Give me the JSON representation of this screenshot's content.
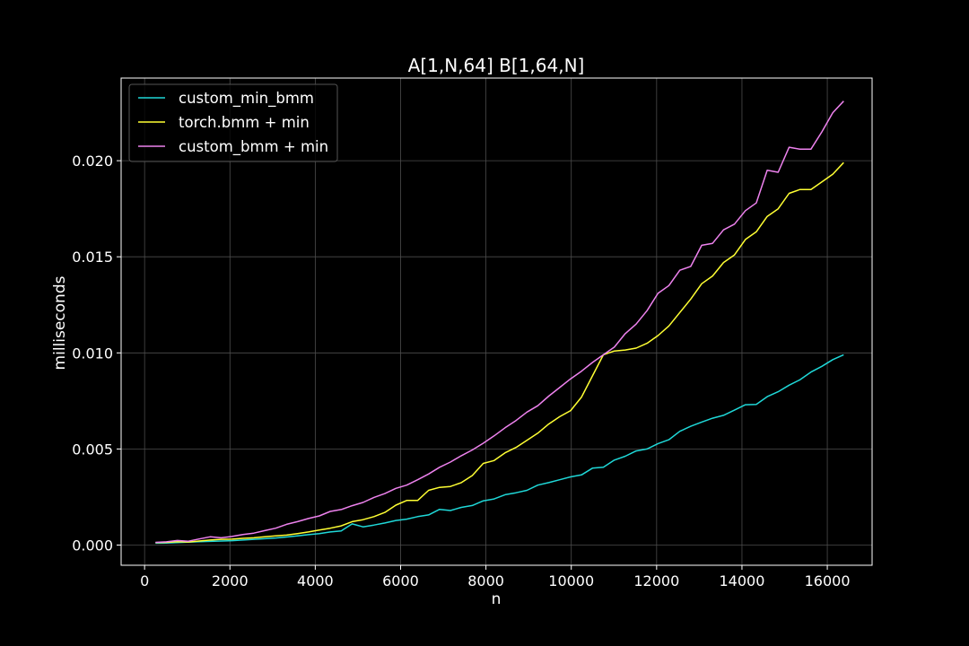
{
  "chart_data": {
    "type": "line",
    "title": "A[1,N,64] B[1,64,N]",
    "xlabel": "n",
    "ylabel": "milliseconds",
    "xlim": [
      -550,
      17050
    ],
    "ylim": [
      -0.00105,
      0.0243
    ],
    "xticks": [
      0,
      2000,
      4000,
      6000,
      8000,
      10000,
      12000,
      14000,
      16000
    ],
    "xtick_labels": [
      "0",
      "2000",
      "4000",
      "6000",
      "8000",
      "10000",
      "12000",
      "14000",
      "16000"
    ],
    "yticks": [
      0.0,
      0.005,
      0.01,
      0.015,
      0.02
    ],
    "ytick_labels": [
      "0.000",
      "0.005",
      "0.010",
      "0.015",
      "0.020"
    ],
    "grid": true,
    "legend_position": "top-left",
    "background": "#000000",
    "foreground": "#ffffff",
    "x": [
      256,
      512,
      768,
      1024,
      1280,
      1536,
      1792,
      2048,
      2304,
      2560,
      2816,
      3072,
      3328,
      3584,
      3840,
      4096,
      4352,
      4608,
      4864,
      5120,
      5376,
      5632,
      5888,
      6144,
      6400,
      6656,
      6912,
      7168,
      7424,
      7680,
      7936,
      8192,
      8448,
      8704,
      8960,
      9216,
      9472,
      9728,
      9984,
      10240,
      10496,
      10752,
      11008,
      11264,
      11520,
      11776,
      12032,
      12288,
      12544,
      12800,
      13056,
      13312,
      13568,
      13824,
      14080,
      14336,
      14592,
      14848,
      15104,
      15360,
      15616,
      15872,
      16128,
      16384
    ],
    "series": [
      {
        "name": "custom_min_bmm",
        "color": "#1fd8d8",
        "values": [
          0.0001,
          0.00011,
          0.00013,
          0.00015,
          0.00018,
          0.00019,
          0.00021,
          0.00023,
          0.00026,
          0.0003,
          0.00033,
          0.00037,
          0.00042,
          0.00048,
          0.00054,
          0.0006,
          0.00068,
          0.00074,
          0.0011,
          0.00095,
          0.00104,
          0.00115,
          0.00128,
          0.00135,
          0.00148,
          0.00157,
          0.00186,
          0.0018,
          0.00196,
          0.00206,
          0.0023,
          0.0024,
          0.00262,
          0.00272,
          0.00285,
          0.00312,
          0.00325,
          0.0034,
          0.00355,
          0.00365,
          0.004,
          0.00405,
          0.00442,
          0.00462,
          0.0049,
          0.005,
          0.00528,
          0.00548,
          0.00592,
          0.00618,
          0.0064,
          0.0066,
          0.00675,
          0.00702,
          0.0073,
          0.00732,
          0.00772,
          0.00798,
          0.00832,
          0.0086,
          0.009,
          0.0093,
          0.00965,
          0.0099
        ]
      },
      {
        "name": "torch.bmm + min",
        "color": "#ffff33",
        "values": [
          0.00013,
          0.00014,
          0.00018,
          0.00016,
          0.00021,
          0.00026,
          0.0003,
          0.00031,
          0.00035,
          0.00038,
          0.00043,
          0.00048,
          0.00052,
          0.0006,
          0.00068,
          0.00078,
          0.00088,
          0.001,
          0.00122,
          0.00132,
          0.00148,
          0.0017,
          0.00208,
          0.00232,
          0.00232,
          0.00285,
          0.003,
          0.00305,
          0.00325,
          0.00362,
          0.00425,
          0.0044,
          0.0048,
          0.00508,
          0.00545,
          0.00582,
          0.0063,
          0.00668,
          0.007,
          0.0077,
          0.0088,
          0.0099,
          0.0101,
          0.01015,
          0.01025,
          0.0105,
          0.0109,
          0.0114,
          0.0121,
          0.0128,
          0.0136,
          0.014,
          0.0147,
          0.0151,
          0.0159,
          0.0163,
          0.0171,
          0.0175,
          0.0183,
          0.0185,
          0.0185,
          0.0189,
          0.0193,
          0.0199
        ]
      },
      {
        "name": "custom_bmm + min",
        "color": "#ee82ee",
        "values": [
          0.00014,
          0.00017,
          0.00024,
          0.0002,
          0.00032,
          0.00043,
          0.00038,
          0.00045,
          0.00055,
          0.00062,
          0.00075,
          0.00088,
          0.00108,
          0.00122,
          0.00138,
          0.00152,
          0.00175,
          0.00185,
          0.00205,
          0.00222,
          0.00248,
          0.00268,
          0.00295,
          0.00312,
          0.0034,
          0.0037,
          0.00405,
          0.00432,
          0.00465,
          0.00495,
          0.0053,
          0.00568,
          0.0061,
          0.00648,
          0.00692,
          0.00725,
          0.00775,
          0.0082,
          0.00865,
          0.00905,
          0.0095,
          0.0099,
          0.0103,
          0.011,
          0.0115,
          0.0122,
          0.0131,
          0.0135,
          0.0143,
          0.0145,
          0.0156,
          0.0157,
          0.0164,
          0.0167,
          0.0174,
          0.0178,
          0.0195,
          0.0194,
          0.0207,
          0.0206,
          0.0206,
          0.0215,
          0.0225,
          0.0231
        ]
      }
    ]
  }
}
